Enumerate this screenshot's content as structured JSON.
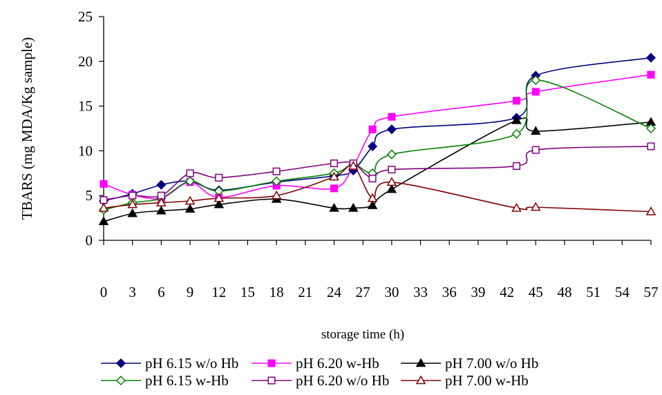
{
  "chart_data": {
    "type": "line",
    "title": "",
    "xlabel": "storage time (h)",
    "ylabel": "TBARS (mg MDA/Kg sample)",
    "ylim": [
      0,
      25
    ],
    "yticks": [
      0,
      5,
      10,
      15,
      20,
      25
    ],
    "x_tick_labels": [
      "0",
      "3",
      "6",
      "9",
      "12",
      "15",
      "18",
      "21",
      "24",
      "27",
      "30",
      "33",
      "36",
      "39",
      "42",
      "45",
      "48",
      "51",
      "54",
      "57"
    ],
    "xlim": [
      0,
      57
    ],
    "grid": false,
    "legend": "bottom",
    "series": [
      {
        "name": "pH 6.15 w/o Hb",
        "color": "#000080",
        "marker": "diamond-filled",
        "x": [
          0,
          3,
          6,
          9,
          12,
          18,
          24,
          26,
          28,
          30,
          43,
          45,
          57
        ],
        "y": [
          4.4,
          5.2,
          6.2,
          6.6,
          5.6,
          6.5,
          7.2,
          7.8,
          10.5,
          12.4,
          13.7,
          18.4,
          20.4
        ]
      },
      {
        "name": "pH 6.20 w-Hb",
        "color": "#ff00ff",
        "marker": "square-filled",
        "x": [
          0,
          3,
          6,
          9,
          12,
          18,
          24,
          26,
          28,
          30,
          43,
          45,
          57
        ],
        "y": [
          6.3,
          5.1,
          4.7,
          6.5,
          4.8,
          6.1,
          5.8,
          8.3,
          12.4,
          13.8,
          15.6,
          16.6,
          18.5
        ]
      },
      {
        "name": "pH 7.00 w/o Hb",
        "color": "#000000",
        "marker": "triangle-filled",
        "x": [
          0,
          3,
          6,
          9,
          12,
          18,
          24,
          26,
          28,
          30,
          43,
          45,
          57
        ],
        "y": [
          2.1,
          3.0,
          3.3,
          3.5,
          4.0,
          4.6,
          3.6,
          3.6,
          3.9,
          5.7,
          13.4,
          12.2,
          13.2
        ]
      },
      {
        "name": "pH 6.15 w-Hb",
        "color": "#008000",
        "marker": "diamond-open",
        "x": [
          0,
          3,
          6,
          9,
          12,
          18,
          24,
          26,
          28,
          30,
          43,
          45,
          57
        ],
        "y": [
          3.4,
          4.2,
          4.7,
          6.6,
          5.5,
          6.6,
          7.5,
          8.5,
          7.5,
          9.6,
          11.9,
          17.9,
          12.5
        ]
      },
      {
        "name": "pH 6.20 w/o Hb",
        "color": "#800080",
        "marker": "square-open",
        "x": [
          0,
          3,
          6,
          9,
          12,
          18,
          24,
          26,
          28,
          30,
          43,
          45,
          57
        ],
        "y": [
          4.5,
          5.0,
          5.0,
          7.5,
          7.0,
          7.7,
          8.6,
          8.6,
          6.9,
          7.9,
          8.3,
          10.1,
          10.5
        ]
      },
      {
        "name": "pH 7.00 w-Hb",
        "color": "#800000",
        "marker": "triangle-open",
        "x": [
          0,
          3,
          6,
          9,
          12,
          18,
          24,
          26,
          28,
          30,
          43,
          45,
          57
        ],
        "y": [
          3.6,
          4.0,
          4.2,
          4.4,
          4.7,
          5.0,
          7.1,
          8.3,
          4.7,
          6.5,
          3.6,
          3.7,
          3.2
        ]
      }
    ]
  }
}
